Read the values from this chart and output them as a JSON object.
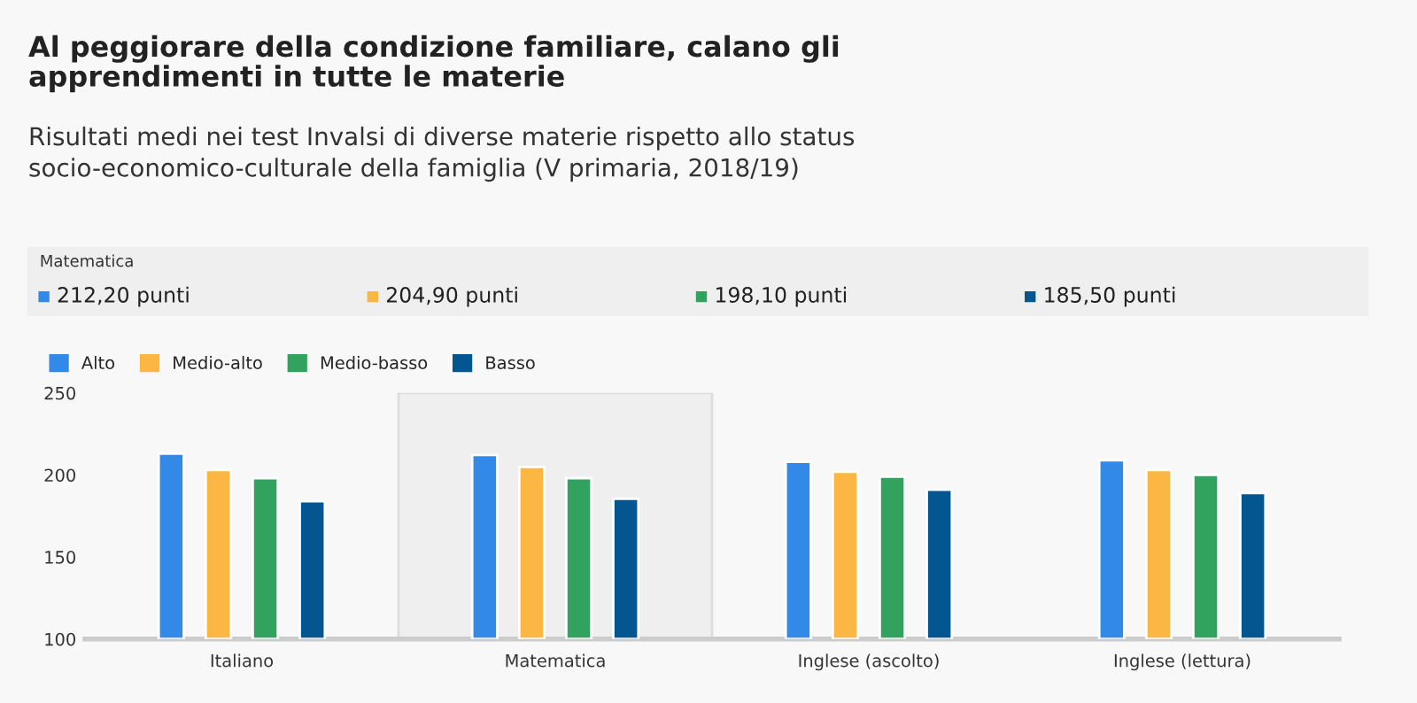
{
  "chart_data": {
    "type": "bar",
    "title": "Al peggiorare della condizione familiare, calano gli\napprendimenti in tutte le materie",
    "subtitle": "Risultati medi nei test Invalsi di diverse materie rispetto allo status\nsocio-economico-culturale della famiglia (V primaria, 2018/19)",
    "categories": [
      "Italiano",
      "Matematica",
      "Inglese (ascolto)",
      "Inglese (lettura)"
    ],
    "series": [
      {
        "name": "Alto",
        "color": "#3289e8",
        "values": [
          213,
          212.2,
          208,
          209
        ]
      },
      {
        "name": "Medio-alto",
        "color": "#fcb644",
        "values": [
          203,
          204.9,
          202,
          203
        ]
      },
      {
        "name": "Medio-basso",
        "color": "#32a35e",
        "values": [
          198,
          198.1,
          199,
          200
        ]
      },
      {
        "name": "Basso",
        "color": "#03568f",
        "values": [
          184,
          185.5,
          191,
          189
        ]
      }
    ],
    "annotations": [
      "Matematica",
      "212,20 punti",
      "204,90 punti",
      "198,10 punti",
      "185,50 punti"
    ],
    "bands": [
      {
        "axis": "x",
        "from": "Matematica",
        "to": "Matematica",
        "color": "#efefef"
      }
    ],
    "ylim": [
      100,
      250
    ],
    "yticks": [
      100,
      150,
      200,
      250
    ],
    "grid": false,
    "legend": "top left"
  }
}
